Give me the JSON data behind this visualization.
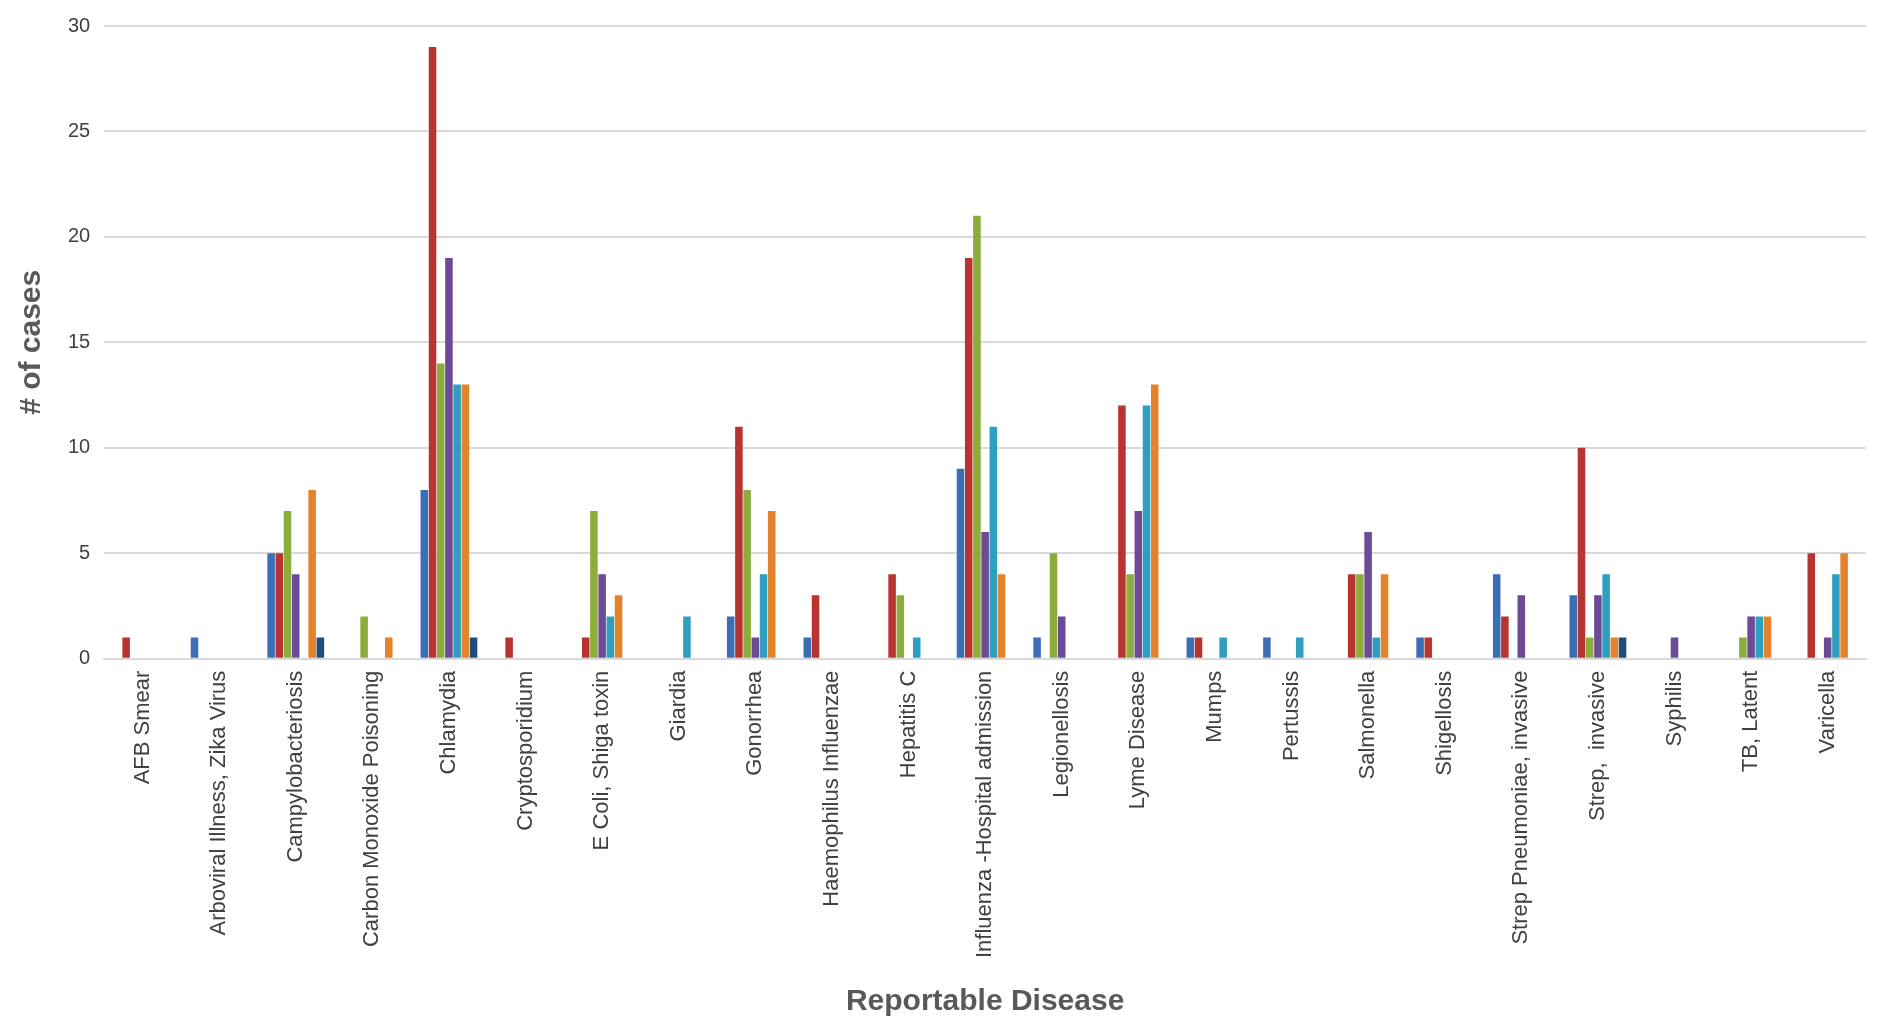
{
  "chart_data": {
    "type": "bar",
    "xlabel": "Reportable Disease",
    "ylabel": "# of cases",
    "categories": [
      "AFB Smear",
      "Arboviral Illness, Zika Virus",
      "Campylobacteriosis",
      "Carbon Monoxide Poisoning",
      "Chlamydia",
      "Cryptosporidium",
      "E Coli, Shiga toxin",
      "Giardia",
      "Gonorrhea",
      "Haemophilus Influenzae",
      "Hepatitis C",
      "Influenza -Hospital admission",
      "Legionellosis",
      "Lyme Disease",
      "Mumps",
      "Pertussis",
      "Salmonella",
      "Shigellosis",
      "Strep Pneumoniae, invasive",
      "Strep,  invasive",
      "Syphilis",
      "TB, Latent",
      "Varicella"
    ],
    "series": [
      {
        "color": "#3a6fb5",
        "values": [
          0,
          1,
          5,
          0,
          8,
          0,
          0,
          0,
          2,
          1,
          0,
          9,
          1,
          0,
          1,
          1,
          0,
          1,
          4,
          3,
          0,
          0,
          0
        ]
      },
      {
        "color": "#b83430",
        "values": [
          1,
          0,
          5,
          0,
          29,
          1,
          1,
          0,
          11,
          3,
          4,
          19,
          0,
          12,
          1,
          0,
          4,
          1,
          2,
          10,
          0,
          0,
          5
        ]
      },
      {
        "color": "#8aad3c",
        "values": [
          0,
          0,
          7,
          2,
          14,
          0,
          7,
          0,
          8,
          0,
          3,
          21,
          5,
          4,
          0,
          0,
          4,
          0,
          0,
          1,
          0,
          1,
          0
        ]
      },
      {
        "color": "#6c4a96",
        "values": [
          0,
          0,
          4,
          0,
          19,
          0,
          4,
          0,
          1,
          0,
          0,
          6,
          2,
          7,
          0,
          0,
          6,
          0,
          3,
          3,
          1,
          2,
          1
        ]
      },
      {
        "color": "#2f9fbf",
        "values": [
          0,
          0,
          0,
          0,
          13,
          0,
          2,
          2,
          4,
          0,
          1,
          11,
          0,
          12,
          1,
          1,
          1,
          0,
          0,
          4,
          0,
          2,
          4
        ]
      },
      {
        "color": "#e5832a",
        "values": [
          0,
          0,
          8,
          1,
          13,
          0,
          3,
          0,
          7,
          0,
          0,
          4,
          0,
          13,
          0,
          0,
          4,
          0,
          0,
          1,
          0,
          2,
          5
        ]
      },
      {
        "color": "#1f4e79",
        "values": [
          0,
          0,
          1,
          0,
          1,
          0,
          0,
          0,
          0,
          0,
          0,
          0,
          0,
          0,
          0,
          0,
          0,
          0,
          0,
          1,
          0,
          0,
          0
        ]
      }
    ],
    "ylim": [
      0,
      30
    ],
    "yticks": [
      0,
      5,
      10,
      15,
      20,
      25,
      30
    ],
    "grid": "y",
    "legend": false
  }
}
